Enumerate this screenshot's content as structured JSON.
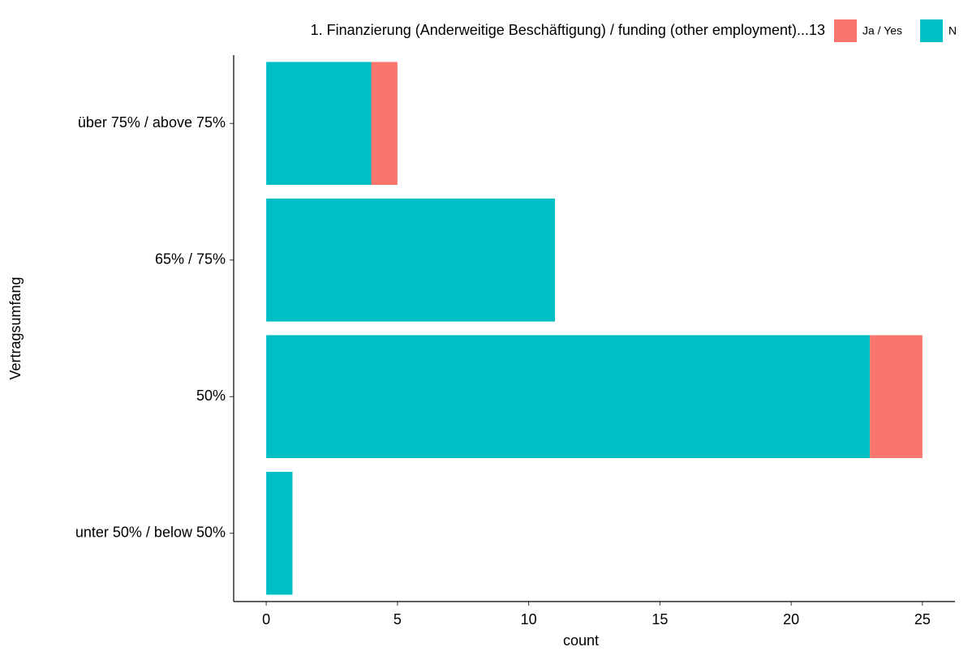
{
  "chart_data": {
    "type": "stacked-barh",
    "legend_title": "1. Finanzierung (Anderweitige Beschäftigung) / funding (other employment)...13",
    "legend_position": "top",
    "ylabel": "Vertragsumfang",
    "xlabel": "count",
    "categories": [
      "über 75% / above 75%",
      "65% / 75%",
      "50%",
      "unter 50% / below 50%"
    ],
    "series": [
      {
        "name": "N",
        "color": "#00BFC4",
        "values": [
          4,
          11,
          23,
          1
        ]
      },
      {
        "name": "Ja / Yes",
        "color": "#F8766D",
        "values": [
          1,
          0,
          2,
          0
        ]
      }
    ],
    "legend_order": [
      1,
      0
    ],
    "xlim": [
      -1.24,
      26.24
    ],
    "xticks": [
      0,
      5,
      10,
      15,
      20,
      25
    ],
    "grid": false
  }
}
